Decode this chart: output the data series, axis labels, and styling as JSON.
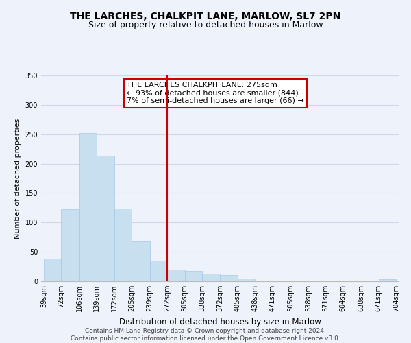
{
  "title": "THE LARCHES, CHALKPIT LANE, MARLOW, SL7 2PN",
  "subtitle": "Size of property relative to detached houses in Marlow",
  "xlabel": "Distribution of detached houses by size in Marlow",
  "ylabel": "Number of detached properties",
  "bar_color": "#c8dff0",
  "bar_edge_color": "#a8c8e8",
  "background_color": "#eef2fa",
  "grid_color": "#d0d8e8",
  "bins": [
    39,
    72,
    106,
    139,
    172,
    205,
    239,
    272,
    305,
    338,
    372,
    405,
    438,
    471,
    505,
    538,
    571,
    604,
    638,
    671,
    704
  ],
  "counts": [
    38,
    123,
    252,
    213,
    124,
    68,
    35,
    20,
    17,
    13,
    10,
    5,
    1,
    0,
    0,
    0,
    0,
    0,
    0,
    4
  ],
  "tick_labels": [
    "39sqm",
    "72sqm",
    "106sqm",
    "139sqm",
    "172sqm",
    "205sqm",
    "239sqm",
    "272sqm",
    "305sqm",
    "338sqm",
    "372sqm",
    "405sqm",
    "438sqm",
    "471sqm",
    "505sqm",
    "538sqm",
    "571sqm",
    "604sqm",
    "638sqm",
    "671sqm",
    "704sqm"
  ],
  "vline_x": 272,
  "vline_color": "#cc0000",
  "annotation_line1": "THE LARCHES CHALKPIT LANE: 275sqm",
  "annotation_line2": "← 93% of detached houses are smaller (844)",
  "annotation_line3": "7% of semi-detached houses are larger (66) →",
  "annotation_box_edge": "#cc0000",
  "ylim": [
    0,
    350
  ],
  "yticks": [
    0,
    50,
    100,
    150,
    200,
    250,
    300,
    350
  ],
  "footer_text": "Contains HM Land Registry data © Crown copyright and database right 2024.\nContains public sector information licensed under the Open Government Licence v3.0.",
  "title_fontsize": 10,
  "subtitle_fontsize": 9,
  "xlabel_fontsize": 8.5,
  "ylabel_fontsize": 8,
  "tick_fontsize": 7,
  "annotation_fontsize": 8,
  "footer_fontsize": 6.5
}
